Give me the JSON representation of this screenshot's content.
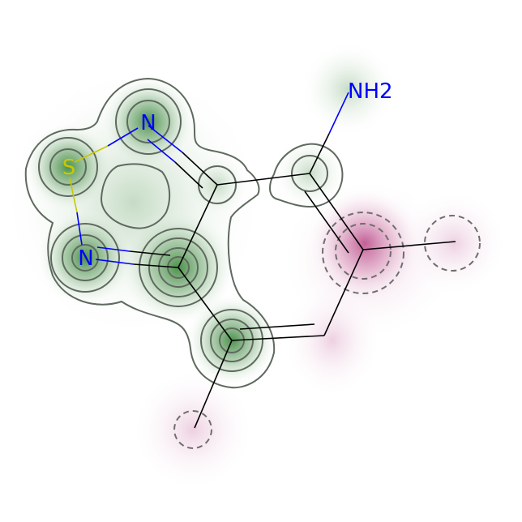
{
  "molecule": {
    "atoms": [
      {
        "id": "a0",
        "label": "S",
        "element": "S"
      },
      {
        "id": "a1",
        "label": "N",
        "element": "N"
      },
      {
        "id": "a2",
        "label": "N",
        "element": "N"
      },
      {
        "id": "a3",
        "label": "NH2",
        "element": "N"
      },
      {
        "id": "a4",
        "label": "",
        "element": "C"
      },
      {
        "id": "a5",
        "label": "",
        "element": "C"
      },
      {
        "id": "a6",
        "label": "",
        "element": "C"
      },
      {
        "id": "a7",
        "label": "",
        "element": "C"
      },
      {
        "id": "a8",
        "label": "",
        "element": "C"
      },
      {
        "id": "a9",
        "label": "",
        "element": "C"
      },
      {
        "id": "a10",
        "label": "",
        "element": "C"
      },
      {
        "id": "a11",
        "label": "",
        "element": "C"
      }
    ],
    "bonds": [
      {
        "from": "a0",
        "to": "a1",
        "order": 1
      },
      {
        "from": "a0",
        "to": "a2",
        "order": 1
      },
      {
        "from": "a1",
        "to": "a4",
        "order": 2
      },
      {
        "from": "a2",
        "to": "a5",
        "order": 2
      },
      {
        "from": "a4",
        "to": "a5",
        "order": 1
      },
      {
        "from": "a4",
        "to": "a6",
        "order": 1
      },
      {
        "from": "a6",
        "to": "a3",
        "order": 1
      },
      {
        "from": "a6",
        "to": "a7",
        "order": 2
      },
      {
        "from": "a7",
        "to": "a8",
        "order": 1
      },
      {
        "from": "a7",
        "to": "a9",
        "order": 1
      },
      {
        "from": "a9",
        "to": "a10",
        "order": 2
      },
      {
        "from": "a10",
        "to": "a5",
        "order": 1
      },
      {
        "from": "a10",
        "to": "a11",
        "order": 1
      }
    ]
  },
  "colors": {
    "S": "#c8c800",
    "N": "#0000ff",
    "C": "#000000",
    "positive": "#2e7d2e",
    "negative": "#b0357a",
    "contour": "#5f6a5f"
  }
}
